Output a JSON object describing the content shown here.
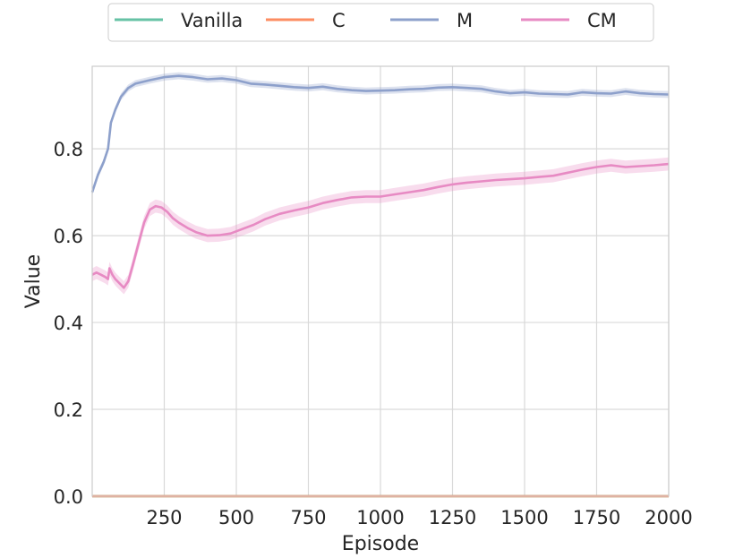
{
  "chart_data": {
    "type": "line",
    "xlabel": "Episode",
    "ylabel": "Value",
    "xlim": [
      0,
      2000
    ],
    "ylim": [
      0,
      0.99
    ],
    "x_ticks": [
      250,
      500,
      750,
      1000,
      1250,
      1500,
      1750,
      2000
    ],
    "y_ticks": [
      0.0,
      0.2,
      0.4,
      0.6,
      0.8
    ],
    "grid": true,
    "legend_position": "top-center",
    "series": [
      {
        "name": "Vanilla",
        "color": "#66c2a5",
        "x": [
          0,
          2000
        ],
        "y": [
          0.0,
          0.0
        ],
        "band": 0.0
      },
      {
        "name": "C",
        "color": "#fc8d62",
        "x": [
          0,
          2000
        ],
        "y": [
          0.0,
          0.0
        ],
        "band": 0.0
      },
      {
        "name": "M",
        "color": "#8da0cb",
        "x": [
          0,
          20,
          40,
          55,
          65,
          80,
          100,
          125,
          150,
          200,
          250,
          300,
          350,
          400,
          450,
          500,
          550,
          600,
          650,
          700,
          750,
          800,
          850,
          900,
          950,
          1000,
          1050,
          1100,
          1150,
          1200,
          1250,
          1300,
          1350,
          1400,
          1450,
          1500,
          1550,
          1600,
          1650,
          1700,
          1750,
          1800,
          1850,
          1900,
          1950,
          2000
        ],
        "y": [
          0.7,
          0.74,
          0.77,
          0.8,
          0.86,
          0.89,
          0.92,
          0.94,
          0.95,
          0.958,
          0.965,
          0.968,
          0.965,
          0.96,
          0.962,
          0.958,
          0.95,
          0.948,
          0.945,
          0.942,
          0.94,
          0.943,
          0.938,
          0.935,
          0.933,
          0.934,
          0.935,
          0.937,
          0.938,
          0.941,
          0.942,
          0.94,
          0.938,
          0.932,
          0.928,
          0.93,
          0.927,
          0.926,
          0.925,
          0.93,
          0.928,
          0.927,
          0.932,
          0.928,
          0.926,
          0.925
        ],
        "band": 0.008
      },
      {
        "name": "CM",
        "color": "#e78ac3",
        "x": [
          0,
          15,
          30,
          45,
          55,
          60,
          70,
          80,
          95,
          110,
          125,
          140,
          160,
          180,
          200,
          220,
          240,
          260,
          280,
          300,
          330,
          360,
          400,
          440,
          480,
          520,
          560,
          600,
          650,
          700,
          750,
          800,
          850,
          900,
          950,
          1000,
          1050,
          1100,
          1150,
          1200,
          1250,
          1300,
          1350,
          1400,
          1450,
          1500,
          1550,
          1600,
          1650,
          1700,
          1750,
          1800,
          1850,
          1900,
          1950,
          2000
        ],
        "y": [
          0.51,
          0.515,
          0.51,
          0.505,
          0.5,
          0.525,
          0.51,
          0.5,
          0.49,
          0.48,
          0.495,
          0.53,
          0.58,
          0.63,
          0.66,
          0.668,
          0.665,
          0.655,
          0.64,
          0.63,
          0.618,
          0.608,
          0.6,
          0.601,
          0.605,
          0.615,
          0.625,
          0.638,
          0.65,
          0.658,
          0.665,
          0.675,
          0.682,
          0.688,
          0.69,
          0.69,
          0.695,
          0.7,
          0.705,
          0.712,
          0.718,
          0.722,
          0.725,
          0.728,
          0.73,
          0.732,
          0.735,
          0.738,
          0.745,
          0.752,
          0.758,
          0.762,
          0.758,
          0.76,
          0.762,
          0.765
        ],
        "band": 0.015
      }
    ]
  }
}
